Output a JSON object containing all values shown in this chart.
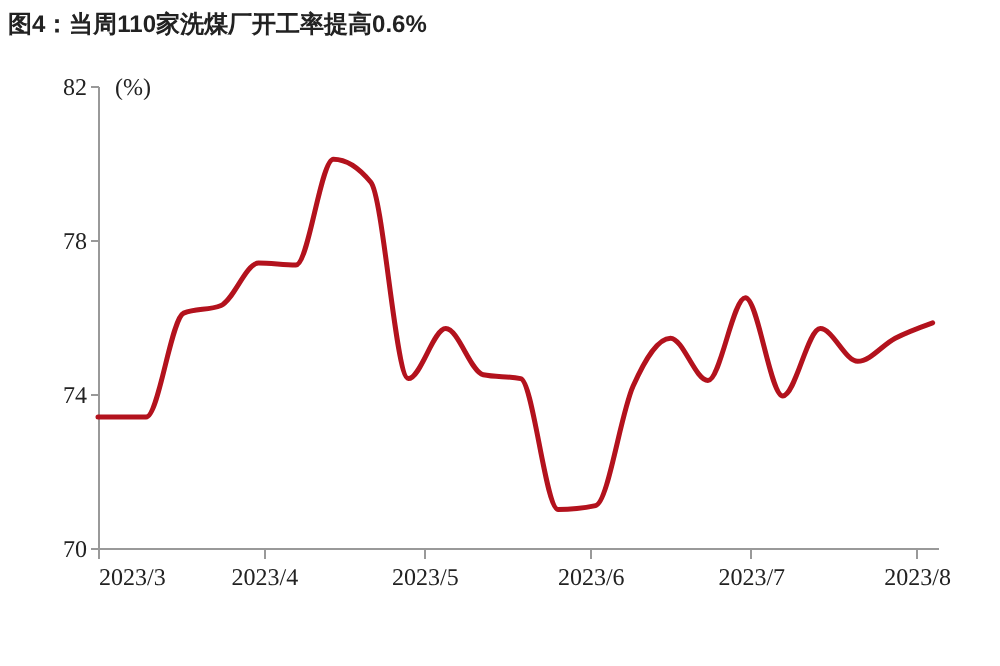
{
  "chart_data": {
    "type": "line",
    "title": "图4：当周110家洗煤厂开工率提高0.6%",
    "ylabel": "(%)",
    "x": [
      "2023-03-01",
      "2023-03-10",
      "2023-03-17",
      "2023-03-24",
      "2023-03-31",
      "2023-04-07",
      "2023-04-14",
      "2023-04-21",
      "2023-04-28",
      "2023-05-05",
      "2023-05-12",
      "2023-05-19",
      "2023-05-26",
      "2023-06-02",
      "2023-06-09",
      "2023-06-16",
      "2023-06-23",
      "2023-06-30",
      "2023-07-07",
      "2023-07-14",
      "2023-07-21",
      "2023-07-28",
      "2023-08-04"
    ],
    "series": [
      {
        "color": "#b3121d",
        "values": [
          73.4,
          73.4,
          76.1,
          76.3,
          77.4,
          77.35,
          80.1,
          79.5,
          74.4,
          75.7,
          74.5,
          74.4,
          71.0,
          71.1,
          74.2,
          75.45,
          74.35,
          76.5,
          73.95,
          75.7,
          74.85,
          75.45,
          75.85
        ]
      }
    ],
    "xlim": [
      "2023-03-01",
      "2023-08-05"
    ],
    "xticks": [
      {
        "value": "2023-03",
        "label": "2023/3"
      },
      {
        "value": "2023-04",
        "label": "2023/4"
      },
      {
        "value": "2023-05",
        "label": "2023/5"
      },
      {
        "value": "2023-06",
        "label": "2023/6"
      },
      {
        "value": "2023-07",
        "label": "2023/7"
      },
      {
        "value": "2023-08",
        "label": "2023/8"
      }
    ],
    "ylim": [
      70,
      82
    ],
    "yticks": [
      70,
      74,
      78,
      82
    ],
    "grid": false,
    "marker": "none",
    "line_style": "solid"
  }
}
